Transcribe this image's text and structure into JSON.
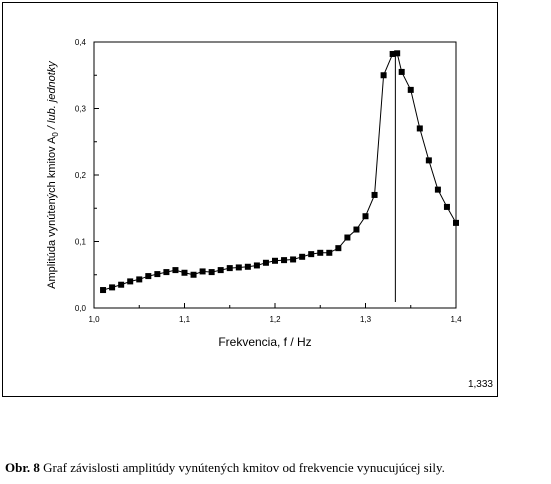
{
  "chart_data": {
    "type": "scatter",
    "connected": true,
    "xlabel": "Frekvencia, f / Hz",
    "ylabel": "Amplitúda vynútených kmitov  A",
    "ylabel_sub": "0",
    "ylabel_unit": " / lub. jednotky",
    "xlim": [
      1.0,
      1.4
    ],
    "ylim": [
      0.0,
      0.4
    ],
    "x_ticks": [
      "1,0",
      "1,1",
      "1,2",
      "1,3",
      "1,4"
    ],
    "y_ticks": [
      "0,0",
      "0,1",
      "0,2",
      "0,3",
      "0,4"
    ],
    "vertical_marker": 1.333,
    "vertical_marker_label": "1,333",
    "points": [
      [
        1.01,
        0.027
      ],
      [
        1.02,
        0.031
      ],
      [
        1.03,
        0.035
      ],
      [
        1.04,
        0.04
      ],
      [
        1.05,
        0.043
      ],
      [
        1.06,
        0.048
      ],
      [
        1.07,
        0.051
      ],
      [
        1.08,
        0.054
      ],
      [
        1.09,
        0.057
      ],
      [
        1.1,
        0.053
      ],
      [
        1.11,
        0.05
      ],
      [
        1.12,
        0.055
      ],
      [
        1.13,
        0.054
      ],
      [
        1.14,
        0.057
      ],
      [
        1.15,
        0.06
      ],
      [
        1.16,
        0.061
      ],
      [
        1.17,
        0.062
      ],
      [
        1.18,
        0.064
      ],
      [
        1.19,
        0.068
      ],
      [
        1.2,
        0.071
      ],
      [
        1.21,
        0.072
      ],
      [
        1.22,
        0.073
      ],
      [
        1.23,
        0.077
      ],
      [
        1.24,
        0.081
      ],
      [
        1.25,
        0.083
      ],
      [
        1.26,
        0.083
      ],
      [
        1.27,
        0.09
      ],
      [
        1.28,
        0.106
      ],
      [
        1.29,
        0.118
      ],
      [
        1.3,
        0.138
      ],
      [
        1.31,
        0.17
      ],
      [
        1.32,
        0.35
      ],
      [
        1.33,
        0.382
      ],
      [
        1.335,
        0.383
      ],
      [
        1.34,
        0.355
      ],
      [
        1.35,
        0.328
      ],
      [
        1.36,
        0.27
      ],
      [
        1.37,
        0.222
      ],
      [
        1.38,
        0.178
      ],
      [
        1.39,
        0.152
      ],
      [
        1.4,
        0.128
      ]
    ]
  },
  "caption": {
    "label": "Obr. 8",
    "text": " Graf závislosti amplitúdy vynútených kmitov od frekvencie vynucujúcej sily."
  }
}
